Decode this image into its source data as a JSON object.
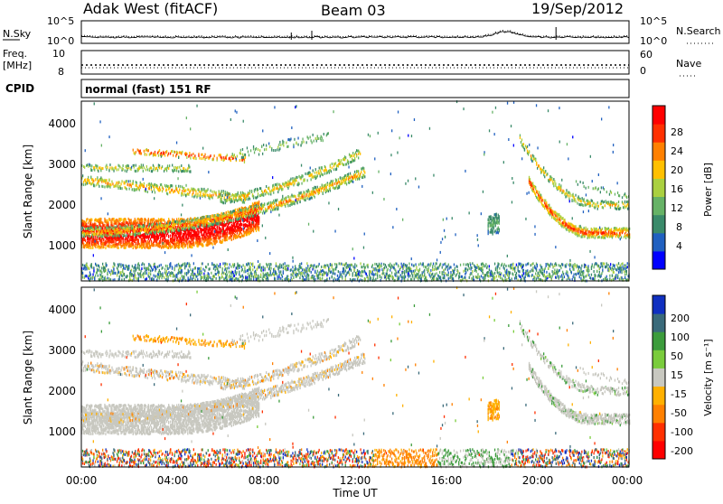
{
  "header": {
    "station": "Adak West (fitACF)",
    "beam": "Beam 03",
    "date": "19/Sep/2012"
  },
  "noise_panel": {
    "left_label": "N.Sky",
    "right_label": "N.Search",
    "left_ticks": [
      "10^5",
      "10^0"
    ],
    "right_ticks": [
      "10^5",
      "10^0"
    ]
  },
  "freq_panel": {
    "left_label_1": "Freq.",
    "left_label_2": "[MHz]",
    "right_label": "Nave",
    "left_ticks": [
      "10",
      "8"
    ],
    "right_ticks": [
      "60",
      "0"
    ]
  },
  "cpid": {
    "label": "CPID",
    "value": "normal (fast) 151 RF"
  },
  "power_panel": {
    "ylabel": "Slant Range [km]",
    "yticks": [
      "4000",
      "3000",
      "2000",
      "1000"
    ],
    "colorbar_label": "Power [dB]",
    "colorbar_ticks": [
      "28",
      "24",
      "20",
      "16",
      "12",
      "8",
      "4"
    ]
  },
  "velocity_panel": {
    "ylabel": "Slant Range [km]",
    "yticks": [
      "4000",
      "3000",
      "2000",
      "1000"
    ],
    "colorbar_label": "Velocity [m s⁻¹]",
    "colorbar_ticks": [
      "200",
      "100",
      "50",
      "15",
      "-15",
      "-50",
      "-100",
      "-200"
    ]
  },
  "x_axis": {
    "label": "Time UT",
    "ticks": [
      "00:00",
      "04:00",
      "08:00",
      "12:00",
      "16:00",
      "20:00",
      "00:00"
    ]
  },
  "colors": {
    "power_scale": [
      "#0000ff",
      "#2060c0",
      "#3a8a6a",
      "#66b266",
      "#aad040",
      "#ffc000",
      "#ff8000",
      "#ff3000",
      "#ff0000"
    ],
    "velocity_scale": [
      "#1030c0",
      "#3a6a7a",
      "#3c9c3c",
      "#7acc3c",
      "#c8c8c0",
      "#ffb000",
      "#ff8000",
      "#ff3000",
      "#ff0000"
    ]
  },
  "chart_data": {
    "type": "heatmap",
    "x_range_hours": [
      0,
      24
    ],
    "y_range_km": [
      180,
      4500
    ],
    "power_range_db": [
      0,
      30
    ],
    "velocity_range": [
      -250,
      250
    ]
  }
}
